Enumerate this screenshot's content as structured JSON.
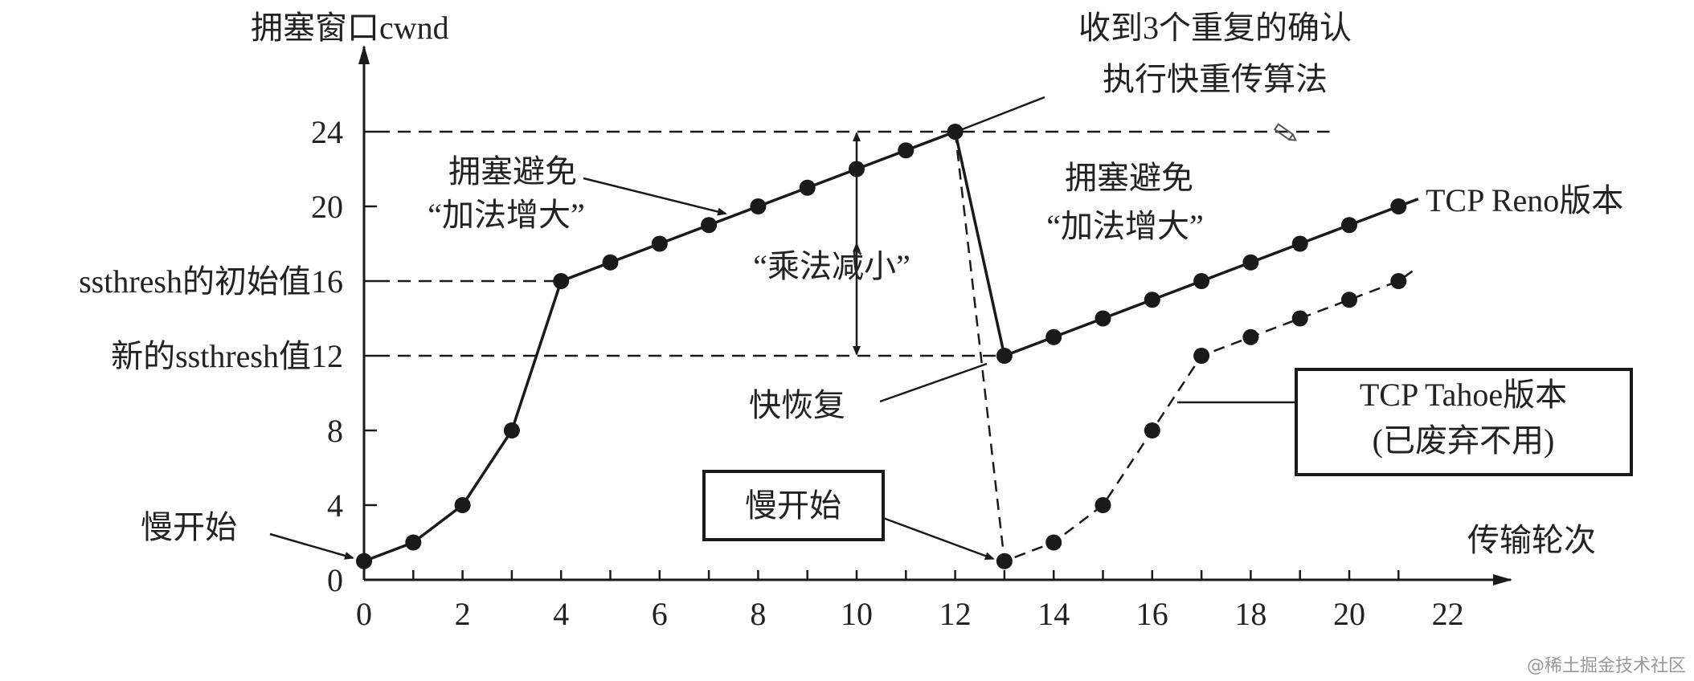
{
  "chart_data": {
    "type": "line",
    "ylabel": "拥塞窗口cwnd",
    "xlabel": "传输轮次",
    "xlim": [
      0,
      22
    ],
    "ylim": [
      0,
      24
    ],
    "x_ticks": [
      "0",
      "2",
      "4",
      "6",
      "8",
      "10",
      "12",
      "14",
      "16",
      "18",
      "20",
      "22"
    ],
    "y_ticks": [
      "0",
      "4",
      "8",
      "",
      "",
      "20",
      "24"
    ],
    "y_tick_labels": {
      "0": "0",
      "4": "4",
      "8": "8",
      "12": "新的ssthresh值12",
      "16": "ssthresh的初始值16",
      "20": "20",
      "24": "24"
    },
    "series": [
      {
        "name": "TCP Reno版本",
        "style": "solid",
        "x": [
          0,
          1,
          2,
          3,
          4,
          5,
          6,
          7,
          8,
          9,
          10,
          11,
          12,
          13,
          14,
          15,
          16,
          17,
          18,
          19,
          20,
          21
        ],
        "y": [
          1,
          2,
          4,
          8,
          16,
          17,
          18,
          19,
          20,
          21,
          22,
          23,
          24,
          12,
          13,
          14,
          15,
          16,
          17,
          18,
          19,
          20
        ]
      },
      {
        "name": "TCP Tahoe版本",
        "note": "(已废弃不用)",
        "style": "dashed",
        "x": [
          12,
          13,
          14,
          15,
          16,
          17,
          18,
          19,
          20,
          21
        ],
        "y": [
          24,
          1,
          2,
          4,
          8,
          12,
          13,
          14,
          15,
          16
        ]
      }
    ],
    "reference_lines": [
      24,
      16,
      12
    ],
    "annotations": {
      "slow_start_1": "慢开始",
      "ca_1_line1": "拥塞避免",
      "ca_1_line2": "“加法增大”",
      "md": "“乘法减小”",
      "dupack_line1": "收到3个重复的确认",
      "dupack_line2": "执行快重传算法",
      "ca_2_line1": "拥塞避免",
      "ca_2_line2": "“加法增大”",
      "fast_recovery": "快恢复",
      "slow_start_2": "慢开始",
      "reno": "TCP Reno版本",
      "tahoe_line1": "TCP Tahoe版本",
      "tahoe_line2": "(已废弃不用)"
    },
    "grid": false,
    "colors": {
      "ink": "#1a1a1a"
    }
  },
  "watermark": "@稀土掘金技术社区"
}
